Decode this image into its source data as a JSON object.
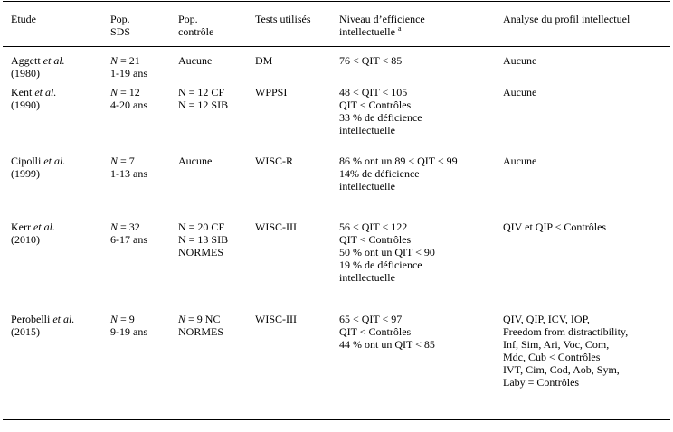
{
  "headers": {
    "etude": "Étude",
    "pop_sds": [
      "Pop.",
      "SDS"
    ],
    "pop_controle": [
      "Pop.",
      "contrôle"
    ],
    "tests": "Tests utilisés",
    "niveau": [
      "Niveau d’efficience",
      "intellectuelle"
    ],
    "niveau_note": "a",
    "analyse": "Analyse du profil intellectuel"
  },
  "rows": [
    {
      "author": "Aggett",
      "etal": "et al.",
      "year": "(1980)",
      "n_label": "N",
      "n_value": " = 21",
      "age": "1-19 ans",
      "controle": [
        "Aucune"
      ],
      "test": "DM",
      "niveau": [
        "76 < QIT < 85"
      ],
      "analyse": [
        "Aucune"
      ]
    },
    {
      "author": "Kent",
      "etal": "et al.",
      "year": "(1990)",
      "n_label": "N",
      "n_value": " = 12",
      "age": "4-20 ans",
      "controle": [
        "N = 12 CF",
        "N = 12 SIB"
      ],
      "test": "WPPSI",
      "niveau": [
        "48 < QIT < 105",
        "QIT < Contrôles",
        "33 % de déficience",
        "intellectuelle"
      ],
      "analyse": [
        "Aucune"
      ]
    },
    {
      "author": "Cipolli",
      "etal": "et al.",
      "year": "(1999)",
      "n_label": "N",
      "n_value": " = 7",
      "age": "1-13 ans",
      "controle": [
        "Aucune"
      ],
      "test": "WISC-R",
      "niveau": [
        "86 % ont un 89 < QIT < 99",
        "14% de déficience",
        "intellectuelle"
      ],
      "analyse": [
        "Aucune"
      ]
    },
    {
      "author": "Kerr",
      "etal": "et al.",
      "year": "(2010)",
      "n_label": "N",
      "n_value": " = 32",
      "age": "6-17 ans",
      "controle": [
        "N = 20 CF",
        "N = 13 SIB",
        "NORMES"
      ],
      "test": "WISC-III",
      "niveau": [
        "56 < QIT < 122",
        "QIT < Contrôles",
        "50 % ont un QIT < 90",
        "19 % de déficience",
        "intellectuelle"
      ],
      "analyse": [
        "QIV et QIP < Contrôles"
      ]
    },
    {
      "author": "Perobelli",
      "etal": "et al.",
      "year": "(2015)",
      "n_label": "N",
      "n_value": " = 9",
      "age": "9-19 ans",
      "controle_n_label": "N",
      "controle": [
        " = 9 NC",
        "NORMES"
      ],
      "test": "WISC-III",
      "niveau": [
        "65 < QIT < 97",
        "QIT < Contrôles",
        "44 % ont un QIT <  85"
      ],
      "analyse": [
        "QIV, QIP, ICV, IOP,",
        "Freedom from distractibility,",
        "Inf, Sim, Ari, Voc, Com,",
        "Mdc, Cub  < Contrôles",
        "IVT, Cim, Cod, Aob, Sym,",
        "Laby = Contrôles"
      ]
    }
  ]
}
